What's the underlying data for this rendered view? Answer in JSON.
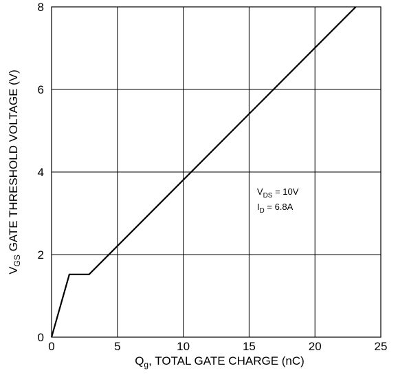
{
  "chart_data": {
    "type": "line",
    "title": "",
    "xlabel": {
      "main": "Q",
      "sub": "g",
      "rest": ", TOTAL GATE CHARGE (nC)"
    },
    "ylabel": {
      "main": "V",
      "sub": "GS",
      "rest": " GATE THRESHOLD VOLTAGE (V)"
    },
    "xlim": [
      0,
      25
    ],
    "ylim": [
      0,
      8
    ],
    "x_ticks": [
      0,
      5,
      10,
      15,
      20,
      25
    ],
    "y_ticks": [
      0,
      2,
      4,
      6,
      8
    ],
    "grid": true,
    "series": [
      {
        "x": [
          0,
          1.35,
          2.85,
          23.1
        ],
        "y": [
          0,
          1.52,
          1.52,
          8.0
        ]
      }
    ],
    "annotations": [
      {
        "main": "V",
        "sub": "DS",
        "rest": " = 10V",
        "x": 15.6,
        "y": 3.45
      },
      {
        "main": "I",
        "sub": "D",
        "rest": " = 6.8A",
        "x": 15.6,
        "y": 3.08
      }
    ]
  }
}
